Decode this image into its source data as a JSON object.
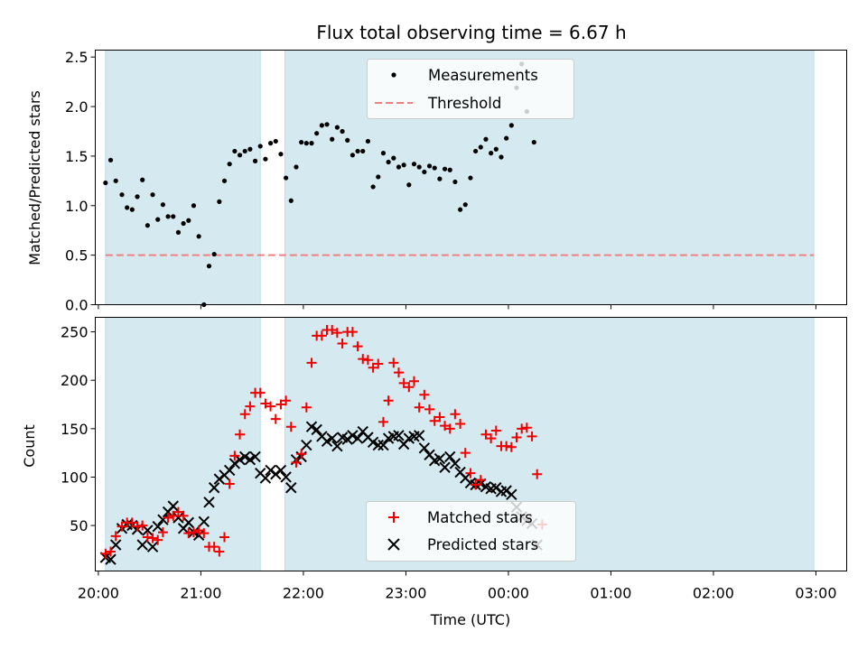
{
  "title": "Flux total observing time = 6.67 h",
  "colors": {
    "shade": "#d4eaf0",
    "shade_edge": "#bcdce6",
    "measurement": "#000000",
    "threshold": "#f08080",
    "matched": "#ee0000",
    "predicted": "#000000"
  },
  "chart_data": [
    {
      "type": "scatter",
      "ylabel": "Matched/Predicted stars",
      "xlabel": "",
      "xlim_hours": [
        19.97,
        27.3
      ],
      "ylim": [
        0,
        2.57
      ],
      "yticks": [
        0.0,
        0.5,
        1.0,
        1.5,
        2.0,
        2.5
      ],
      "ytick_labels": [
        "0.0",
        "0.5",
        "1.0",
        "1.5",
        "2.0",
        "2.5"
      ],
      "shaded_intervals_hours": [
        [
          20.07,
          21.58
        ],
        [
          21.82,
          26.98
        ]
      ],
      "threshold": 0.5,
      "legend": {
        "placement": "upper-center",
        "entries": [
          "Measurements",
          "Threshold"
        ]
      },
      "series": [
        {
          "name": "Measurements",
          "points": [
            [
              20.07,
              1.23
            ],
            [
              20.12,
              1.46
            ],
            [
              20.17,
              1.25
            ],
            [
              20.23,
              1.11
            ],
            [
              20.28,
              0.98
            ],
            [
              20.33,
              0.96
            ],
            [
              20.38,
              1.09
            ],
            [
              20.43,
              1.26
            ],
            [
              20.48,
              0.8
            ],
            [
              20.53,
              1.11
            ],
            [
              20.58,
              0.86
            ],
            [
              20.63,
              1.01
            ],
            [
              20.68,
              0.89
            ],
            [
              20.73,
              0.89
            ],
            [
              20.78,
              0.73
            ],
            [
              20.83,
              0.82
            ],
            [
              20.88,
              0.85
            ],
            [
              20.93,
              1.0
            ],
            [
              20.98,
              0.69
            ],
            [
              21.03,
              0.0
            ],
            [
              21.08,
              0.39
            ],
            [
              21.13,
              0.51
            ],
            [
              21.18,
              1.04
            ],
            [
              21.23,
              1.25
            ],
            [
              21.28,
              1.42
            ],
            [
              21.33,
              1.55
            ],
            [
              21.38,
              1.51
            ],
            [
              21.43,
              1.55
            ],
            [
              21.48,
              1.57
            ],
            [
              21.53,
              1.45
            ],
            [
              21.58,
              1.6
            ],
            [
              21.63,
              1.47
            ],
            [
              21.68,
              1.63
            ],
            [
              21.73,
              1.65
            ],
            [
              21.78,
              1.52
            ],
            [
              21.83,
              1.28
            ],
            [
              21.88,
              1.05
            ],
            [
              21.93,
              1.39
            ],
            [
              21.98,
              1.64
            ],
            [
              22.03,
              1.63
            ],
            [
              22.08,
              1.63
            ],
            [
              22.13,
              1.73
            ],
            [
              22.18,
              1.81
            ],
            [
              22.23,
              1.82
            ],
            [
              22.28,
              1.67
            ],
            [
              22.33,
              1.79
            ],
            [
              22.38,
              1.75
            ],
            [
              22.43,
              1.66
            ],
            [
              22.48,
              1.51
            ],
            [
              22.53,
              1.55
            ],
            [
              22.58,
              1.55
            ],
            [
              22.63,
              1.65
            ],
            [
              22.68,
              1.19
            ],
            [
              22.73,
              1.29
            ],
            [
              22.78,
              1.53
            ],
            [
              22.83,
              1.44
            ],
            [
              22.88,
              1.48
            ],
            [
              22.93,
              1.39
            ],
            [
              22.98,
              1.41
            ],
            [
              23.03,
              1.21
            ],
            [
              23.08,
              1.42
            ],
            [
              23.13,
              1.39
            ],
            [
              23.18,
              1.34
            ],
            [
              23.23,
              1.4
            ],
            [
              23.28,
              1.38
            ],
            [
              23.33,
              1.27
            ],
            [
              23.38,
              1.37
            ],
            [
              23.43,
              1.36
            ],
            [
              23.48,
              1.24
            ],
            [
              23.53,
              0.96
            ],
            [
              23.58,
              1.01
            ],
            [
              23.63,
              1.28
            ],
            [
              23.68,
              1.55
            ],
            [
              23.73,
              1.59
            ],
            [
              23.78,
              1.67
            ],
            [
              23.83,
              1.53
            ],
            [
              23.88,
              1.57
            ],
            [
              23.93,
              1.49
            ],
            [
              23.98,
              1.68
            ],
            [
              24.03,
              1.81
            ],
            [
              24.08,
              2.19
            ],
            [
              24.13,
              2.43
            ],
            [
              24.18,
              1.95
            ],
            [
              24.25,
              1.64
            ]
          ]
        }
      ]
    },
    {
      "type": "scatter",
      "ylabel": "Count",
      "xlabel": "Time (UTC)",
      "xlim_hours": [
        19.97,
        27.3
      ],
      "ylim": [
        3,
        265
      ],
      "yticks": [
        50,
        100,
        150,
        200,
        250
      ],
      "ytick_labels": [
        "50",
        "100",
        "150",
        "200",
        "250"
      ],
      "xticks_hours": [
        20,
        21,
        22,
        23,
        24,
        25,
        26,
        27
      ],
      "xtick_labels": [
        "20:00",
        "21:00",
        "22:00",
        "23:00",
        "00:00",
        "01:00",
        "02:00",
        "03:00"
      ],
      "shaded_intervals_hours": [
        [
          20.07,
          21.58
        ],
        [
          21.82,
          26.98
        ]
      ],
      "legend": {
        "placement": "lower-center",
        "entries": [
          "Matched stars",
          "Predicted stars"
        ]
      },
      "series": [
        {
          "name": "Matched stars",
          "points": [
            [
              20.07,
              21
            ],
            [
              20.12,
              23
            ],
            [
              20.17,
              39
            ],
            [
              20.23,
              49
            ],
            [
              20.28,
              53
            ],
            [
              20.33,
              53
            ],
            [
              20.38,
              49
            ],
            [
              20.43,
              50
            ],
            [
              20.48,
              38
            ],
            [
              20.53,
              37
            ],
            [
              20.58,
              35
            ],
            [
              20.63,
              43
            ],
            [
              20.68,
              58
            ],
            [
              20.73,
              60
            ],
            [
              20.78,
              64
            ],
            [
              20.83,
              60
            ],
            [
              20.88,
              42
            ],
            [
              20.93,
              43
            ],
            [
              20.98,
              45
            ],
            [
              21.03,
              42
            ],
            [
              21.08,
              28
            ],
            [
              21.13,
              28
            ],
            [
              21.18,
              23
            ],
            [
              21.23,
              38
            ],
            [
              21.28,
              93
            ],
            [
              21.33,
              122
            ],
            [
              21.38,
              144
            ],
            [
              21.43,
              165
            ],
            [
              21.48,
              173
            ],
            [
              21.53,
              187
            ],
            [
              21.58,
              187
            ],
            [
              21.63,
              176
            ],
            [
              21.68,
              173
            ],
            [
              21.73,
              160
            ],
            [
              21.78,
              175
            ],
            [
              21.83,
              179
            ],
            [
              21.88,
              152
            ],
            [
              21.93,
              115
            ],
            [
              21.98,
              124
            ],
            [
              22.03,
              172
            ],
            [
              22.08,
              218
            ],
            [
              22.13,
              246
            ],
            [
              22.18,
              246
            ],
            [
              22.23,
              252
            ],
            [
              22.28,
              252
            ],
            [
              22.33,
              249
            ],
            [
              22.38,
              238
            ],
            [
              22.43,
              250
            ],
            [
              22.48,
              250
            ],
            [
              22.53,
              235
            ],
            [
              22.58,
              222
            ],
            [
              22.63,
              221
            ],
            [
              22.68,
              213
            ],
            [
              22.73,
              217
            ],
            [
              22.78,
              157
            ],
            [
              22.83,
              179
            ],
            [
              22.88,
              218
            ],
            [
              22.93,
              208
            ],
            [
              22.98,
              197
            ],
            [
              23.03,
              193
            ],
            [
              23.08,
              199
            ],
            [
              23.13,
              172
            ],
            [
              23.18,
              185
            ],
            [
              23.23,
              170
            ],
            [
              23.28,
              158
            ],
            [
              23.33,
              162
            ],
            [
              23.38,
              153
            ],
            [
              23.43,
              150
            ],
            [
              23.48,
              165
            ],
            [
              23.53,
              155
            ],
            [
              23.58,
              125
            ],
            [
              23.63,
              104
            ],
            [
              23.68,
              92
            ],
            [
              23.73,
              97
            ],
            [
              23.78,
              144
            ],
            [
              23.83,
              140
            ],
            [
              23.88,
              148
            ],
            [
              23.93,
              132
            ],
            [
              23.98,
              132
            ],
            [
              24.03,
              131
            ],
            [
              24.08,
              141
            ],
            [
              24.13,
              150
            ],
            [
              24.18,
              151
            ],
            [
              24.23,
              142
            ],
            [
              24.28,
              103
            ],
            [
              24.33,
              51
            ]
          ]
        },
        {
          "name": "Predicted stars",
          "points": [
            [
              20.07,
              17
            ],
            [
              20.12,
              15
            ],
            [
              20.17,
              30
            ],
            [
              20.23,
              47
            ],
            [
              20.28,
              51
            ],
            [
              20.33,
              50
            ],
            [
              20.38,
              46
            ],
            [
              20.43,
              30
            ],
            [
              20.48,
              45
            ],
            [
              20.53,
              28
            ],
            [
              20.58,
              49
            ],
            [
              20.63,
              56
            ],
            [
              20.68,
              64
            ],
            [
              20.73,
              70
            ],
            [
              20.78,
              58
            ],
            [
              20.83,
              47
            ],
            [
              20.88,
              53
            ],
            [
              20.93,
              43
            ],
            [
              20.98,
              40
            ],
            [
              21.03,
              54
            ],
            [
              21.08,
              74
            ],
            [
              21.13,
              89
            ],
            [
              21.18,
              98
            ],
            [
              21.23,
              102
            ],
            [
              21.28,
              107
            ],
            [
              21.33,
              114
            ],
            [
              21.38,
              118
            ],
            [
              21.43,
              121
            ],
            [
              21.48,
              118
            ],
            [
              21.53,
              121
            ],
            [
              21.58,
              104
            ],
            [
              21.63,
              99
            ],
            [
              21.68,
              107
            ],
            [
              21.73,
              103
            ],
            [
              21.78,
              107
            ],
            [
              21.83,
              100
            ],
            [
              21.88,
              89
            ],
            [
              21.93,
              118
            ],
            [
              21.98,
              121
            ],
            [
              22.03,
              133
            ],
            [
              22.08,
              152
            ],
            [
              22.13,
              149
            ],
            [
              22.18,
              142
            ],
            [
              22.23,
              137
            ],
            [
              22.28,
              140
            ],
            [
              22.33,
              132
            ],
            [
              22.38,
              141
            ],
            [
              22.43,
              139
            ],
            [
              22.48,
              143
            ],
            [
              22.53,
              140
            ],
            [
              22.58,
              147
            ],
            [
              22.63,
              141
            ],
            [
              22.68,
              136
            ],
            [
              22.73,
              133
            ],
            [
              22.78,
              133
            ],
            [
              22.83,
              140
            ],
            [
              22.88,
              142
            ],
            [
              22.93,
              143
            ],
            [
              22.98,
              134
            ],
            [
              23.03,
              140
            ],
            [
              23.08,
              142
            ],
            [
              23.13,
              143
            ],
            [
              23.18,
              130
            ],
            [
              23.23,
              123
            ],
            [
              23.28,
              117
            ],
            [
              23.33,
              119
            ],
            [
              23.38,
              110
            ],
            [
              23.43,
              121
            ],
            [
              23.48,
              114
            ],
            [
              23.53,
              105
            ],
            [
              23.58,
              99
            ],
            [
              23.63,
              94
            ],
            [
              23.68,
              92
            ],
            [
              23.73,
              93
            ],
            [
              23.78,
              90
            ],
            [
              23.83,
              88
            ],
            [
              23.88,
              89
            ],
            [
              23.93,
              85
            ],
            [
              23.98,
              86
            ],
            [
              24.03,
              82
            ],
            [
              24.08,
              69
            ],
            [
              24.13,
              59
            ],
            [
              24.18,
              55
            ],
            [
              24.23,
              52
            ],
            [
              24.28,
              30
            ]
          ]
        }
      ]
    }
  ]
}
